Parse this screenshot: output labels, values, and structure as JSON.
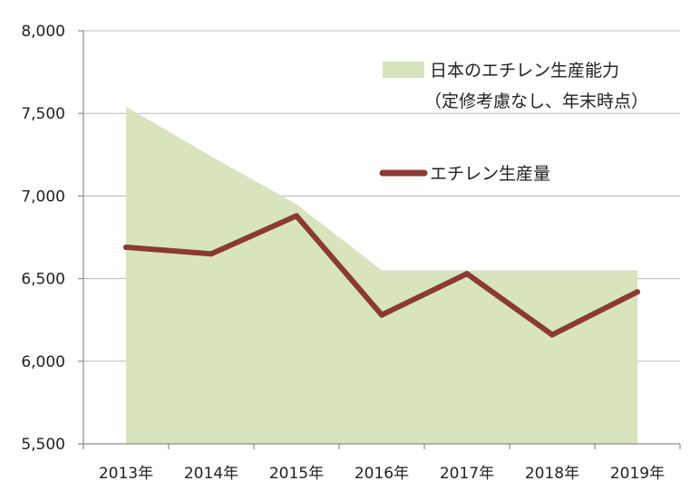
{
  "chart_data": {
    "type": "area",
    "categories": [
      "2013年",
      "2014年",
      "2015年",
      "2016年",
      "2017年",
      "2018年",
      "2019年"
    ],
    "ylim": [
      5500,
      8000
    ],
    "yticks": [
      "5,500",
      "6,000",
      "6,500",
      "7,000",
      "7,500",
      "8,000"
    ],
    "ytick_values": [
      5500,
      6000,
      6500,
      7000,
      7500,
      8000
    ],
    "series": [
      {
        "name": "日本のエチレン生産能力",
        "name_line2": "（定修考慮なし、年末時点）",
        "type": "area",
        "color": "#d7e4bd",
        "values": [
          7540,
          7240,
          6950,
          6550,
          6550,
          6550,
          6550
        ]
      },
      {
        "name": "エチレン生産量",
        "type": "line",
        "color": "#8b3a32",
        "values": [
          6690,
          6650,
          6880,
          6280,
          6530,
          6160,
          6420
        ]
      }
    ],
    "grid": true,
    "legend_position": "top-right"
  }
}
